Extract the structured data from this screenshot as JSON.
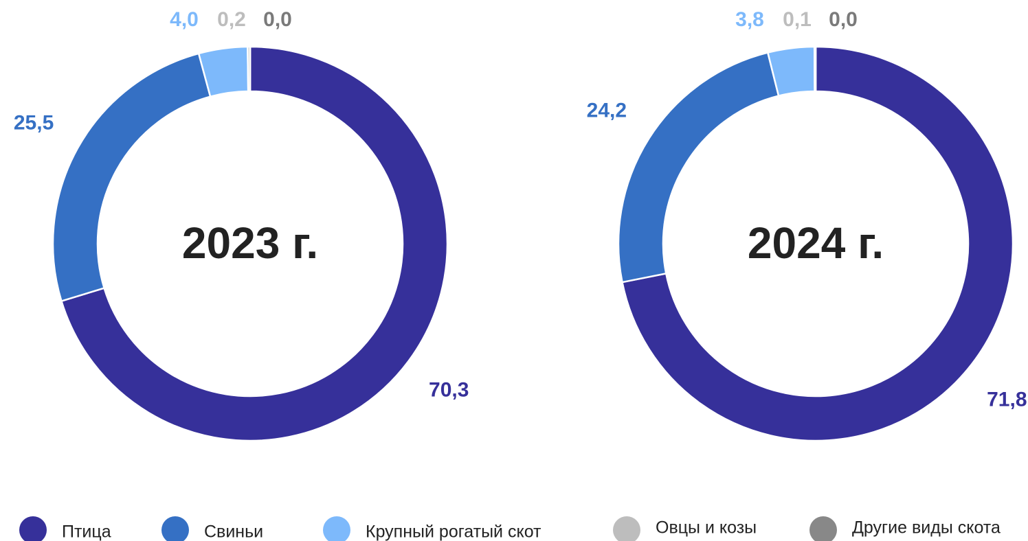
{
  "legend": {
    "labels": [
      "Птица",
      "Свиньи",
      "Крупный рогатый скот",
      "Овцы и козы",
      "Другие виды скота"
    ],
    "colors": [
      "#36309a",
      "#3570c4",
      "#7db9fb",
      "#bdbdbd",
      "#888888"
    ]
  },
  "chart_data": [
    {
      "type": "pie",
      "title": "2023 г.",
      "values": [
        70.3,
        25.5,
        4.0,
        0.2,
        0.0
      ],
      "value_labels": [
        "70,3",
        "25,5",
        "4,0",
        "0,2",
        "0,0"
      ]
    },
    {
      "type": "pie",
      "title": "2024 г.",
      "values": [
        71.8,
        24.2,
        3.8,
        0.1,
        0.0
      ],
      "value_labels": [
        "71,8",
        "24,2",
        "3,8",
        "0,1",
        "0,0"
      ]
    }
  ]
}
